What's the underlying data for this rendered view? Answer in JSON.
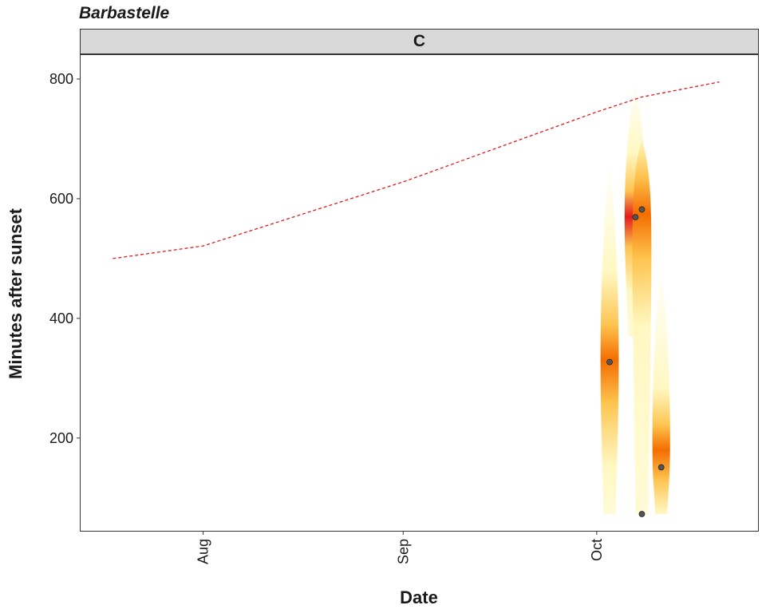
{
  "chart_data": {
    "type": "scatter",
    "title": "Barbastelle",
    "facet_label": "C",
    "xlabel": "Date",
    "ylabel": "Minutes after sunset",
    "x_ticks": [
      "Aug",
      "Sep",
      "Oct"
    ],
    "y_ticks": [
      200,
      400,
      600,
      800
    ],
    "ylim": [
      45,
      840
    ],
    "xlim": [
      "2020-07-13",
      "2020-10-26"
    ],
    "grid": false,
    "points": [
      {
        "x": "2020-10-03",
        "y": 327
      },
      {
        "x": "2020-10-07",
        "y": 569
      },
      {
        "x": "2020-10-08",
        "y": 582
      },
      {
        "x": "2020-10-08",
        "y": 73
      },
      {
        "x": "2020-10-11",
        "y": 151
      }
    ],
    "density_ridges": [
      {
        "x": "2020-10-03",
        "y_min": 73,
        "y_max": 665,
        "peak": 330,
        "intensity": 0.6
      },
      {
        "x": "2020-10-07",
        "y_min": 370,
        "y_max": 795,
        "peak": 570,
        "intensity": 1.0
      },
      {
        "x": "2020-10-08",
        "y_min": 73,
        "y_max": 700,
        "peak": 575,
        "intensity": 0.7
      },
      {
        "x": "2020-10-11",
        "y_min": 73,
        "y_max": 490,
        "peak": 180,
        "intensity": 0.55
      }
    ],
    "sunrise_line": {
      "style": "dashed",
      "color": "#e31a1c",
      "x": [
        "2020-07-18",
        "2020-08-01",
        "2020-09-01",
        "2020-10-01",
        "2020-10-08",
        "2020-10-20"
      ],
      "y": [
        500,
        521,
        628,
        745,
        770,
        795
      ]
    },
    "colors": {
      "point_fill": "#555555",
      "point_stroke": "#222222",
      "ridge_low": "#fff7bc",
      "ridge_mid": "#fec44f",
      "ridge_high": "#e31a1c"
    }
  }
}
